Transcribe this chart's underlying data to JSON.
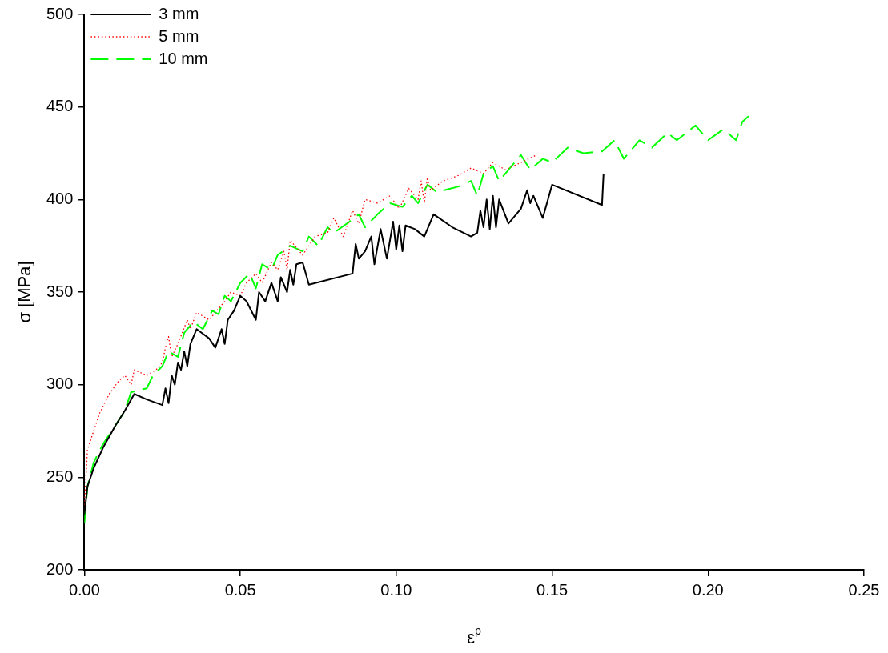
{
  "chart_data": {
    "type": "line",
    "xlabel": "ε$^{p}$",
    "ylabel": "σ [MPa]",
    "xlim": [
      0,
      0.25
    ],
    "ylim": [
      200,
      500
    ],
    "xticks": [
      {
        "value": 0,
        "label": "0.00"
      },
      {
        "value": 0.05,
        "label": "0.05"
      },
      {
        "value": 0.1,
        "label": "0.10"
      },
      {
        "value": 0.15,
        "label": "0.15"
      },
      {
        "value": 0.2,
        "label": "0.20"
      },
      {
        "value": 0.25,
        "label": "0.25"
      }
    ],
    "yticks": [
      200,
      250,
      300,
      350,
      400,
      450,
      500
    ],
    "grid": false,
    "legend": "top left",
    "marker": "none",
    "series": [
      {
        "name": "3 mm",
        "color": "#000000",
        "line_style": "solid",
        "x": [
          0,
          0.001,
          0.003,
          0.006,
          0.01,
          0.013,
          0.015,
          0.016,
          0.02,
          0.025,
          0.026,
          0.027,
          0.028,
          0.029,
          0.03,
          0.031,
          0.032,
          0.033,
          0.034,
          0.036,
          0.04,
          0.042,
          0.044,
          0.045,
          0.046,
          0.048,
          0.05,
          0.052,
          0.055,
          0.056,
          0.058,
          0.06,
          0.062,
          0.063,
          0.065,
          0.066,
          0.067,
          0.068,
          0.07,
          0.072,
          0.086,
          0.087,
          0.088,
          0.09,
          0.092,
          0.093,
          0.095,
          0.097,
          0.099,
          0.1,
          0.101,
          0.102,
          0.103,
          0.106,
          0.109,
          0.112,
          0.118,
          0.124,
          0.126,
          0.127,
          0.128,
          0.129,
          0.13,
          0.131,
          0.132,
          0.133,
          0.136,
          0.14,
          0.142,
          0.143,
          0.144,
          0.147,
          0.15,
          0.166,
          0.1665
        ],
        "values": [
          230,
          245,
          255,
          266,
          278,
          286,
          292,
          295,
          292,
          289,
          298,
          290,
          305,
          300,
          312,
          308,
          318,
          310,
          322,
          330,
          325,
          320,
          330,
          322,
          335,
          340,
          348,
          345,
          335,
          350,
          345,
          355,
          345,
          358,
          350,
          362,
          354,
          365,
          366,
          354,
          360,
          376,
          368,
          372,
          380,
          365,
          384,
          368,
          388,
          373,
          386,
          372,
          386,
          384,
          380,
          392,
          385,
          380,
          382,
          394,
          385,
          400,
          384,
          402,
          385,
          400,
          387,
          395,
          405,
          398,
          402,
          390,
          408,
          397,
          414
        ]
      },
      {
        "name": "5 mm",
        "color": "#ff0000",
        "line_style": "dotted",
        "x": [
          0,
          0.001,
          0.003,
          0.005,
          0.008,
          0.011,
          0.013,
          0.015,
          0.016,
          0.02,
          0.023,
          0.025,
          0.026,
          0.027,
          0.028,
          0.03,
          0.033,
          0.034,
          0.036,
          0.04,
          0.045,
          0.047,
          0.05,
          0.052,
          0.055,
          0.057,
          0.06,
          0.062,
          0.064,
          0.065,
          0.066,
          0.07,
          0.074,
          0.078,
          0.08,
          0.083,
          0.086,
          0.088,
          0.09,
          0.094,
          0.098,
          0.101,
          0.104,
          0.107,
          0.108,
          0.109,
          0.11,
          0.111,
          0.115,
          0.12,
          0.124,
          0.128,
          0.131,
          0.135,
          0.14,
          0.145
        ],
        "values": [
          235,
          265,
          275,
          285,
          295,
          302,
          305,
          300,
          308,
          305,
          308,
          312,
          320,
          326,
          315,
          322,
          335,
          330,
          339,
          335,
          345,
          350,
          348,
          355,
          360,
          355,
          366,
          362,
          372,
          362,
          378,
          370,
          380,
          382,
          390,
          380,
          394,
          387,
          400,
          398,
          402,
          395,
          406,
          400,
          410,
          398,
          412,
          405,
          410,
          413,
          417,
          414,
          420,
          416,
          420,
          424
        ]
      },
      {
        "name": "10 mm",
        "color": "#00ff00",
        "line_style": "dashed",
        "x": [
          0,
          0.001,
          0.003,
          0.006,
          0.01,
          0.013,
          0.015,
          0.02,
          0.022,
          0.025,
          0.027,
          0.03,
          0.032,
          0.035,
          0.038,
          0.041,
          0.043,
          0.045,
          0.047,
          0.05,
          0.053,
          0.055,
          0.057,
          0.06,
          0.062,
          0.066,
          0.07,
          0.072,
          0.075,
          0.078,
          0.08,
          0.085,
          0.088,
          0.09,
          0.094,
          0.098,
          0.102,
          0.105,
          0.107,
          0.11,
          0.113,
          0.12,
          0.124,
          0.126,
          0.128,
          0.131,
          0.133,
          0.137,
          0.14,
          0.143,
          0.147,
          0.15,
          0.155,
          0.16,
          0.166,
          0.17,
          0.173,
          0.178,
          0.182,
          0.187,
          0.19,
          0.196,
          0.2,
          0.205,
          0.209,
          0.211,
          0.213
        ],
        "values": [
          225,
          245,
          258,
          268,
          278,
          286,
          296,
          298,
          305,
          310,
          318,
          315,
          328,
          334,
          330,
          340,
          338,
          348,
          345,
          355,
          360,
          352,
          365,
          362,
          370,
          375,
          372,
          380,
          375,
          385,
          382,
          388,
          392,
          385,
          392,
          398,
          396,
          402,
          398,
          408,
          404,
          407,
          410,
          402,
          414,
          418,
          410,
          418,
          424,
          416,
          422,
          420,
          428,
          425,
          426,
          432,
          422,
          432,
          428,
          436,
          432,
          440,
          432,
          438,
          432,
          442,
          445
        ]
      }
    ]
  }
}
